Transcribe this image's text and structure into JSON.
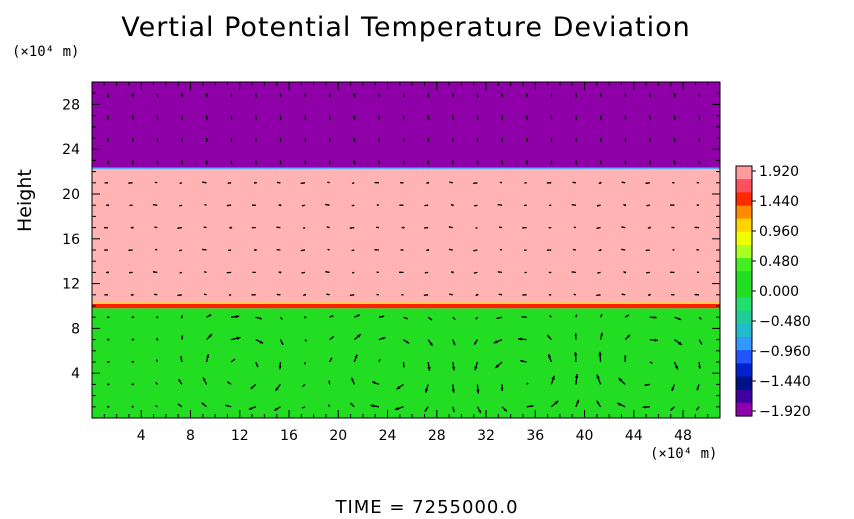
{
  "chart_data": {
    "type": "heatmap",
    "title": "Vertial Potential Temperature Deviation",
    "xlabel": "",
    "ylabel": "Height",
    "x_unit": "(×10⁴ m)",
    "y_unit": "(×10⁴ m)",
    "xlim": [
      0,
      51
    ],
    "ylim": [
      0,
      30
    ],
    "x_ticks": [
      4,
      8,
      12,
      16,
      20,
      24,
      28,
      32,
      36,
      40,
      44,
      48
    ],
    "y_ticks": [
      4,
      8,
      12,
      16,
      20,
      24,
      28
    ],
    "bands": [
      {
        "from": 0,
        "to": 9.8,
        "value": 0.3,
        "color": "#22dd22"
      },
      {
        "from": 9.8,
        "to": 10.2,
        "value": 1.6,
        "color": "#ff2200"
      },
      {
        "from": 10.2,
        "to": 22.3,
        "value": 2.0,
        "color": "#ffb3b3"
      },
      {
        "from": 22.3,
        "to": 30,
        "value": -2.0,
        "color": "#8f00a8"
      }
    ],
    "colorbar": {
      "labels": [
        "1.920",
        "1.440",
        "0.960",
        "0.480",
        "0.000",
        "−0.480",
        "−0.960",
        "−1.440",
        "−1.920"
      ],
      "colors": [
        "#ff9ca0",
        "#ff5060",
        "#ff2a00",
        "#ff8a00",
        "#ffd400",
        "#f0ff00",
        "#a8ff20",
        "#44ee22",
        "#22dd22",
        "#22dd22",
        "#22dd70",
        "#22cc99",
        "#22bbcc",
        "#3399ff",
        "#2255ff",
        "#0022cc",
        "#001188",
        "#4000a0",
        "#8f00a8"
      ]
    },
    "vortices": [
      {
        "x": 12,
        "y": 4.5,
        "direction": "cw"
      },
      {
        "x": 24,
        "y": 4.5,
        "direction": "cw"
      },
      {
        "x": 35,
        "y": 3.5,
        "direction": "ccw"
      },
      {
        "x": 45,
        "y": 4.5,
        "direction": "cw"
      }
    ],
    "grid": false
  },
  "footer": {
    "time_label": "TIME = 7255000.0"
  }
}
